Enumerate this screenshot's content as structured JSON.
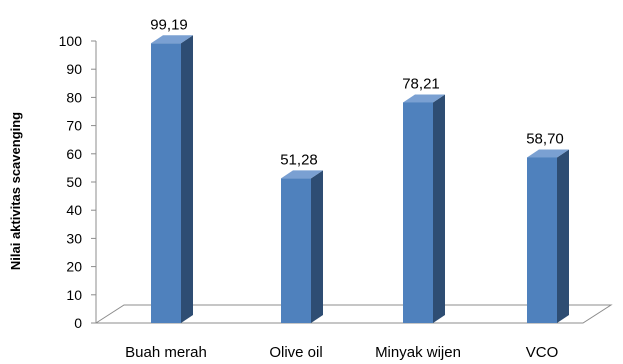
{
  "chart_data": {
    "type": "bar",
    "title": "",
    "xlabel": "",
    "ylabel": "Nilai aktivitas scavenging",
    "categories": [
      "Buah merah",
      "Olive oil",
      "Minyak wijen",
      "VCO"
    ],
    "values": [
      99.19,
      51.28,
      78.21,
      58.7
    ],
    "data_labels": [
      "99,19",
      "51,28",
      "78,21",
      "58,70"
    ],
    "ylim": [
      0,
      100
    ],
    "yticks": [
      "0",
      "10",
      "20",
      "30",
      "40",
      "50",
      "60",
      "70",
      "80",
      "90",
      "100"
    ],
    "grid": false,
    "legend": "none",
    "bar_color": "#4f81bd",
    "bar_side_color": "#2e4d73",
    "bar_top_color": "#7aa0d2"
  }
}
